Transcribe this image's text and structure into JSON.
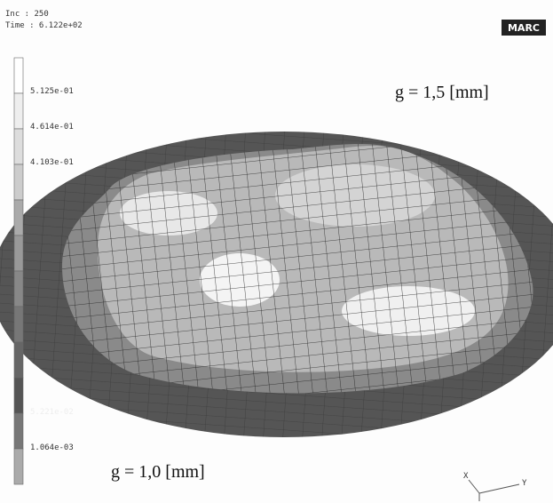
{
  "header": {
    "increment": "Inc  :   250",
    "time": "Time : 6.122e+02",
    "logo": "MARC"
  },
  "legend": {
    "labels": [
      "5.125e-01",
      "4.614e-01",
      "4.103e-01",
      "5.221e-02",
      "1.064e-03"
    ]
  },
  "annotations": {
    "top": "g = 1,5 [mm]",
    "bottom": "g = 1,0 [mm]"
  },
  "axes": {
    "x": "X",
    "y": "Y"
  }
}
